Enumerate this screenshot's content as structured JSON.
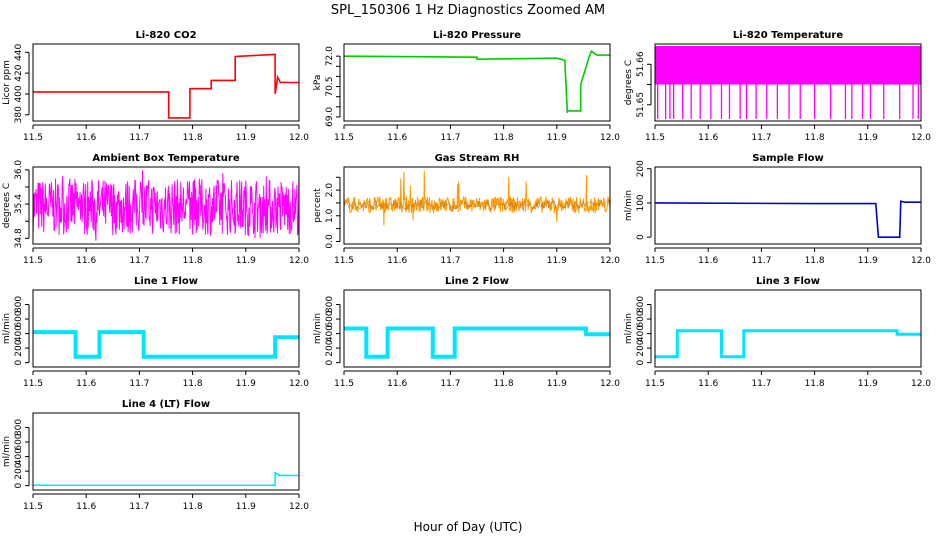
{
  "title": "SPL_150306  1 Hz Diagnostics Zoomed AM",
  "x_axis_title": "Hour of Day (UTC)",
  "chart_data": [
    {
      "id": "co2",
      "type": "line",
      "title": "Li-820 CO2",
      "ylabel": "Licor ppm",
      "color": "#ff0000",
      "xlim": [
        11.5,
        12.0
      ],
      "ylim": [
        374,
        448
      ],
      "xticks": [
        11.5,
        11.6,
        11.7,
        11.8,
        11.9,
        12.0
      ],
      "yticks": [
        380,
        400,
        420,
        440
      ],
      "x": [
        11.5,
        11.755,
        11.755,
        11.795,
        11.795,
        11.835,
        11.835,
        11.88,
        11.88,
        11.955,
        11.955,
        11.96,
        11.965,
        12.0
      ],
      "y": [
        402,
        402,
        377,
        377,
        405,
        405,
        413,
        413,
        436,
        438,
        400,
        416,
        411,
        411
      ]
    },
    {
      "id": "pressure",
      "type": "line",
      "title": "Li-820 Pressure",
      "ylabel": "kPa",
      "color": "#00cc00",
      "xlim": [
        11.5,
        12.0
      ],
      "ylim": [
        68.8,
        72.6
      ],
      "xticks": [
        11.5,
        11.6,
        11.7,
        11.8,
        11.9,
        12.0
      ],
      "yticks": [
        69.0,
        70.5,
        72.0
      ],
      "minor_yticks": [
        69.5,
        70.0,
        71.0,
        71.5
      ],
      "x": [
        11.5,
        11.75,
        11.75,
        11.9,
        11.915,
        11.92,
        11.92,
        11.945,
        11.945,
        11.96,
        11.965,
        11.975,
        12.0
      ],
      "y": [
        72.0,
        71.95,
        71.85,
        71.9,
        71.8,
        69.2,
        69.3,
        69.3,
        70.6,
        71.9,
        72.25,
        72.05,
        72.05
      ]
    },
    {
      "id": "licor_temp",
      "type": "line",
      "title": "Li-820 Temperature",
      "ylabel": "degrees C",
      "color": "#ff00ff",
      "xlim": [
        11.5,
        12.0
      ],
      "ylim": [
        51.646,
        51.665
      ],
      "xticks": [
        11.5,
        11.6,
        11.7,
        11.8,
        11.9,
        12.0
      ],
      "yticks": [
        51.65,
        51.66
      ],
      "minor_yticks": [
        51.655
      ],
      "band": {
        "hi": 51.6645,
        "lo": 51.655
      },
      "spikes_x": [
        11.505,
        11.52,
        11.528,
        11.535,
        11.552,
        11.568,
        11.585,
        11.605,
        11.625,
        11.64,
        11.66,
        11.672,
        11.69,
        11.71,
        11.73,
        11.752,
        11.773,
        11.8,
        11.83,
        11.858,
        11.87,
        11.89,
        11.905,
        11.93,
        11.96,
        11.985,
        11.995
      ],
      "spike_low": 51.6465
    },
    {
      "id": "box_temp",
      "type": "line",
      "title": "Ambient Box Temperature",
      "ylabel": "degrees C",
      "color": "#ff00ff",
      "xlim": [
        11.5,
        12.0
      ],
      "ylim": [
        34.7,
        36.05
      ],
      "xticks": [
        11.5,
        11.6,
        11.7,
        11.8,
        11.9,
        12.0
      ],
      "yticks": [
        34.8,
        35.4,
        36.0
      ],
      "minor_yticks": [
        35.1,
        35.7
      ],
      "noise": {
        "lo": 34.85,
        "hi": 35.85,
        "min": 34.75,
        "max": 36.0
      }
    },
    {
      "id": "rh",
      "type": "line",
      "title": "Gas Stream RH",
      "ylabel": "percent",
      "color": "#ff9900",
      "color2": "#996633",
      "xlim": [
        11.5,
        12.0
      ],
      "ylim": [
        -0.1,
        2.9
      ],
      "xticks": [
        11.5,
        11.6,
        11.7,
        11.8,
        11.9,
        12.0
      ],
      "yticks": [
        0.0,
        1.0,
        2.0
      ],
      "minor_yticks": [
        0.5,
        1.5,
        2.5
      ],
      "noise": {
        "lo": 1.1,
        "hi": 1.75,
        "min": 0.3,
        "max": 2.8
      }
    },
    {
      "id": "sample_flow",
      "type": "line",
      "title": "Sample Flow",
      "ylabel": "ml/min",
      "color": "#0000cc",
      "xlim": [
        11.5,
        12.0
      ],
      "ylim": [
        -20,
        205
      ],
      "xticks": [
        11.5,
        11.6,
        11.7,
        11.8,
        11.9,
        12.0
      ],
      "yticks": [
        0,
        100,
        200
      ],
      "x": [
        11.5,
        11.8,
        11.915,
        11.92,
        11.96,
        11.962,
        11.97,
        12.0
      ],
      "y": [
        100,
        98,
        98,
        0,
        0,
        105,
        102,
        102
      ]
    },
    {
      "id": "line1",
      "type": "line",
      "title": "Line 1 Flow",
      "ylabel": "ml/min",
      "color": "#00e5ff",
      "xlim": [
        11.5,
        12.0
      ],
      "ylim": [
        -60,
        1000
      ],
      "xticks": [
        11.5,
        11.6,
        11.7,
        11.8,
        11.9,
        12.0
      ],
      "yticks": [
        0,
        200,
        400,
        600,
        800
      ],
      "x": [
        11.5,
        11.58,
        11.58,
        11.625,
        11.625,
        11.708,
        11.708,
        11.955,
        11.955,
        12.0
      ],
      "y": [
        420,
        420,
        80,
        80,
        420,
        420,
        80,
        80,
        350,
        350
      ],
      "width": 4
    },
    {
      "id": "line2",
      "type": "line",
      "title": "Line 2 Flow",
      "ylabel": "ml/min",
      "color": "#00e5ff",
      "xlim": [
        11.5,
        12.0
      ],
      "ylim": [
        -60,
        1000
      ],
      "xticks": [
        11.5,
        11.6,
        11.7,
        11.8,
        11.9,
        12.0
      ],
      "yticks": [
        0,
        200,
        400,
        600,
        800
      ],
      "x": [
        11.5,
        11.542,
        11.542,
        11.582,
        11.582,
        11.667,
        11.667,
        11.708,
        11.708,
        11.955,
        11.955,
        12.0
      ],
      "y": [
        470,
        470,
        80,
        80,
        470,
        470,
        80,
        80,
        470,
        470,
        390,
        390
      ],
      "width": 4
    },
    {
      "id": "line3",
      "type": "line",
      "title": "Line 3 Flow",
      "ylabel": "ml/min",
      "color": "#00e5ff",
      "xlim": [
        11.5,
        12.0
      ],
      "ylim": [
        -60,
        1000
      ],
      "xticks": [
        11.5,
        11.6,
        11.7,
        11.8,
        11.9,
        12.0
      ],
      "yticks": [
        0,
        200,
        400,
        600,
        800
      ],
      "x": [
        11.5,
        11.542,
        11.542,
        11.625,
        11.625,
        11.667,
        11.667,
        11.955,
        11.955,
        12.0
      ],
      "y": [
        80,
        80,
        440,
        440,
        80,
        80,
        440,
        440,
        390,
        390
      ],
      "width": 3
    },
    {
      "id": "line4",
      "type": "line",
      "title": "Line 4 (LT) Flow",
      "ylabel": "ml/min",
      "color": "#00e5ff",
      "xlim": [
        11.5,
        12.0
      ],
      "ylim": [
        -60,
        1000
      ],
      "xticks": [
        11.5,
        11.6,
        11.7,
        11.8,
        11.9,
        12.0
      ],
      "yticks": [
        0,
        200,
        400,
        600,
        800
      ],
      "x": [
        11.5,
        11.955,
        11.955,
        11.962,
        11.962,
        12.0
      ],
      "y": [
        5,
        5,
        180,
        150,
        140,
        140
      ],
      "width": 1.5
    }
  ]
}
